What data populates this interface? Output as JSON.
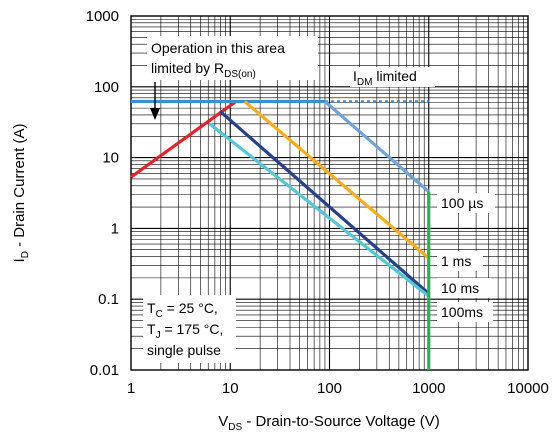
{
  "chart_data": {
    "type": "line",
    "x_scale": "log",
    "y_scale": "log",
    "xlim": [
      1,
      10000
    ],
    "ylim": [
      0.01,
      1000
    ],
    "grid": true,
    "x_ticks": [
      "1",
      "10",
      "100",
      "1000",
      "10000"
    ],
    "y_ticks": [
      "0.01",
      "0.1",
      "1",
      "10",
      "100",
      "1000"
    ],
    "xlabel": {
      "main": "V",
      "sub": "DS",
      "rest": " - Drain-to-Source Voltage (V)"
    },
    "ylabel": {
      "main": "I",
      "sub": "D",
      "rest": " - Drain Current (A)"
    },
    "series": [
      {
        "id": "rds",
        "color": "#e8202a",
        "x": [
          1,
          11.4
        ],
        "y": [
          5.3,
          62
        ]
      },
      {
        "id": "idm",
        "color": "#3a8fcf",
        "x": [
          1,
          90,
          1000
        ],
        "y": [
          62,
          62,
          62
        ],
        "dash_after_index": 1
      },
      {
        "id": "us100",
        "color": "#6fa3d8",
        "x": [
          90,
          1000
        ],
        "y": [
          62,
          3.3
        ]
      },
      {
        "id": "ms1",
        "color": "#f7ae1c",
        "x": [
          14,
          1000
        ],
        "y": [
          62,
          0.38
        ]
      },
      {
        "id": "ms10",
        "color": "#27408b",
        "x": [
          7.9,
          1000
        ],
        "y": [
          45,
          0.12
        ]
      },
      {
        "id": "ms100",
        "color": "#55c7d3",
        "x": [
          6.2,
          1000
        ],
        "y": [
          30,
          0.11
        ]
      },
      {
        "id": "bvdss",
        "color": "#2bb34b",
        "x": [
          1000,
          1000
        ],
        "y": [
          0.01,
          3.3
        ]
      }
    ],
    "annotations": {
      "area_line1": "Operation in this area",
      "area_line2_main": "limited by R",
      "area_line2_sub": "DS(on)",
      "idm_main": "I",
      "idm_sub": "DM",
      "idm_rest": " limited",
      "label_100us": "100 µs",
      "label_1ms": "1 ms",
      "label_10ms": "10 ms",
      "label_100ms": "100ms",
      "cond1_main": "T",
      "cond1_sub": "C",
      "cond1_rest": " = 25 °C,",
      "cond2_main": "T",
      "cond2_sub": "J",
      "cond2_rest": " = 175 °C,",
      "cond3": "single pulse"
    }
  }
}
